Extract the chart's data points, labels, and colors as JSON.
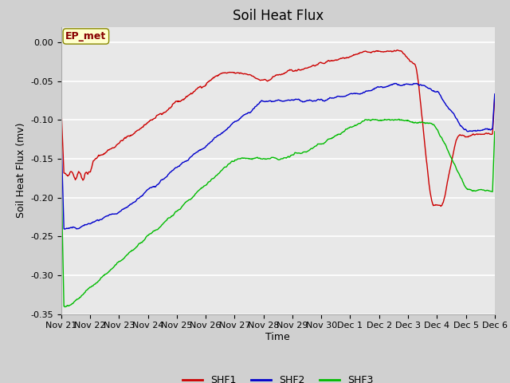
{
  "title": "Soil Heat Flux",
  "xlabel": "Time",
  "ylabel": "Soil Heat Flux (mv)",
  "ylim": [
    -0.35,
    0.02
  ],
  "yticks": [
    0.0,
    -0.05,
    -0.1,
    -0.15,
    -0.2,
    -0.25,
    -0.3,
    -0.35
  ],
  "xtick_labels": [
    "Nov 21",
    "Nov 22",
    "Nov 23",
    "Nov 24",
    "Nov 25",
    "Nov 26",
    "Nov 27",
    "Nov 28",
    "Nov 29",
    "Nov 30",
    "Dec 1",
    "Dec 2",
    "Dec 3",
    "Dec 4",
    "Dec 5",
    "Dec 6"
  ],
  "fig_bg_color": "#d0d0d0",
  "plot_bg_color": "#e8e8e8",
  "grid_color": "#ffffff",
  "shf1_color": "#cc0000",
  "shf2_color": "#0000cc",
  "shf3_color": "#00bb00",
  "legend_label": "EP_met",
  "series_labels": [
    "SHF1",
    "SHF2",
    "SHF3"
  ],
  "title_fontsize": 12,
  "axis_label_fontsize": 9,
  "tick_fontsize": 8
}
